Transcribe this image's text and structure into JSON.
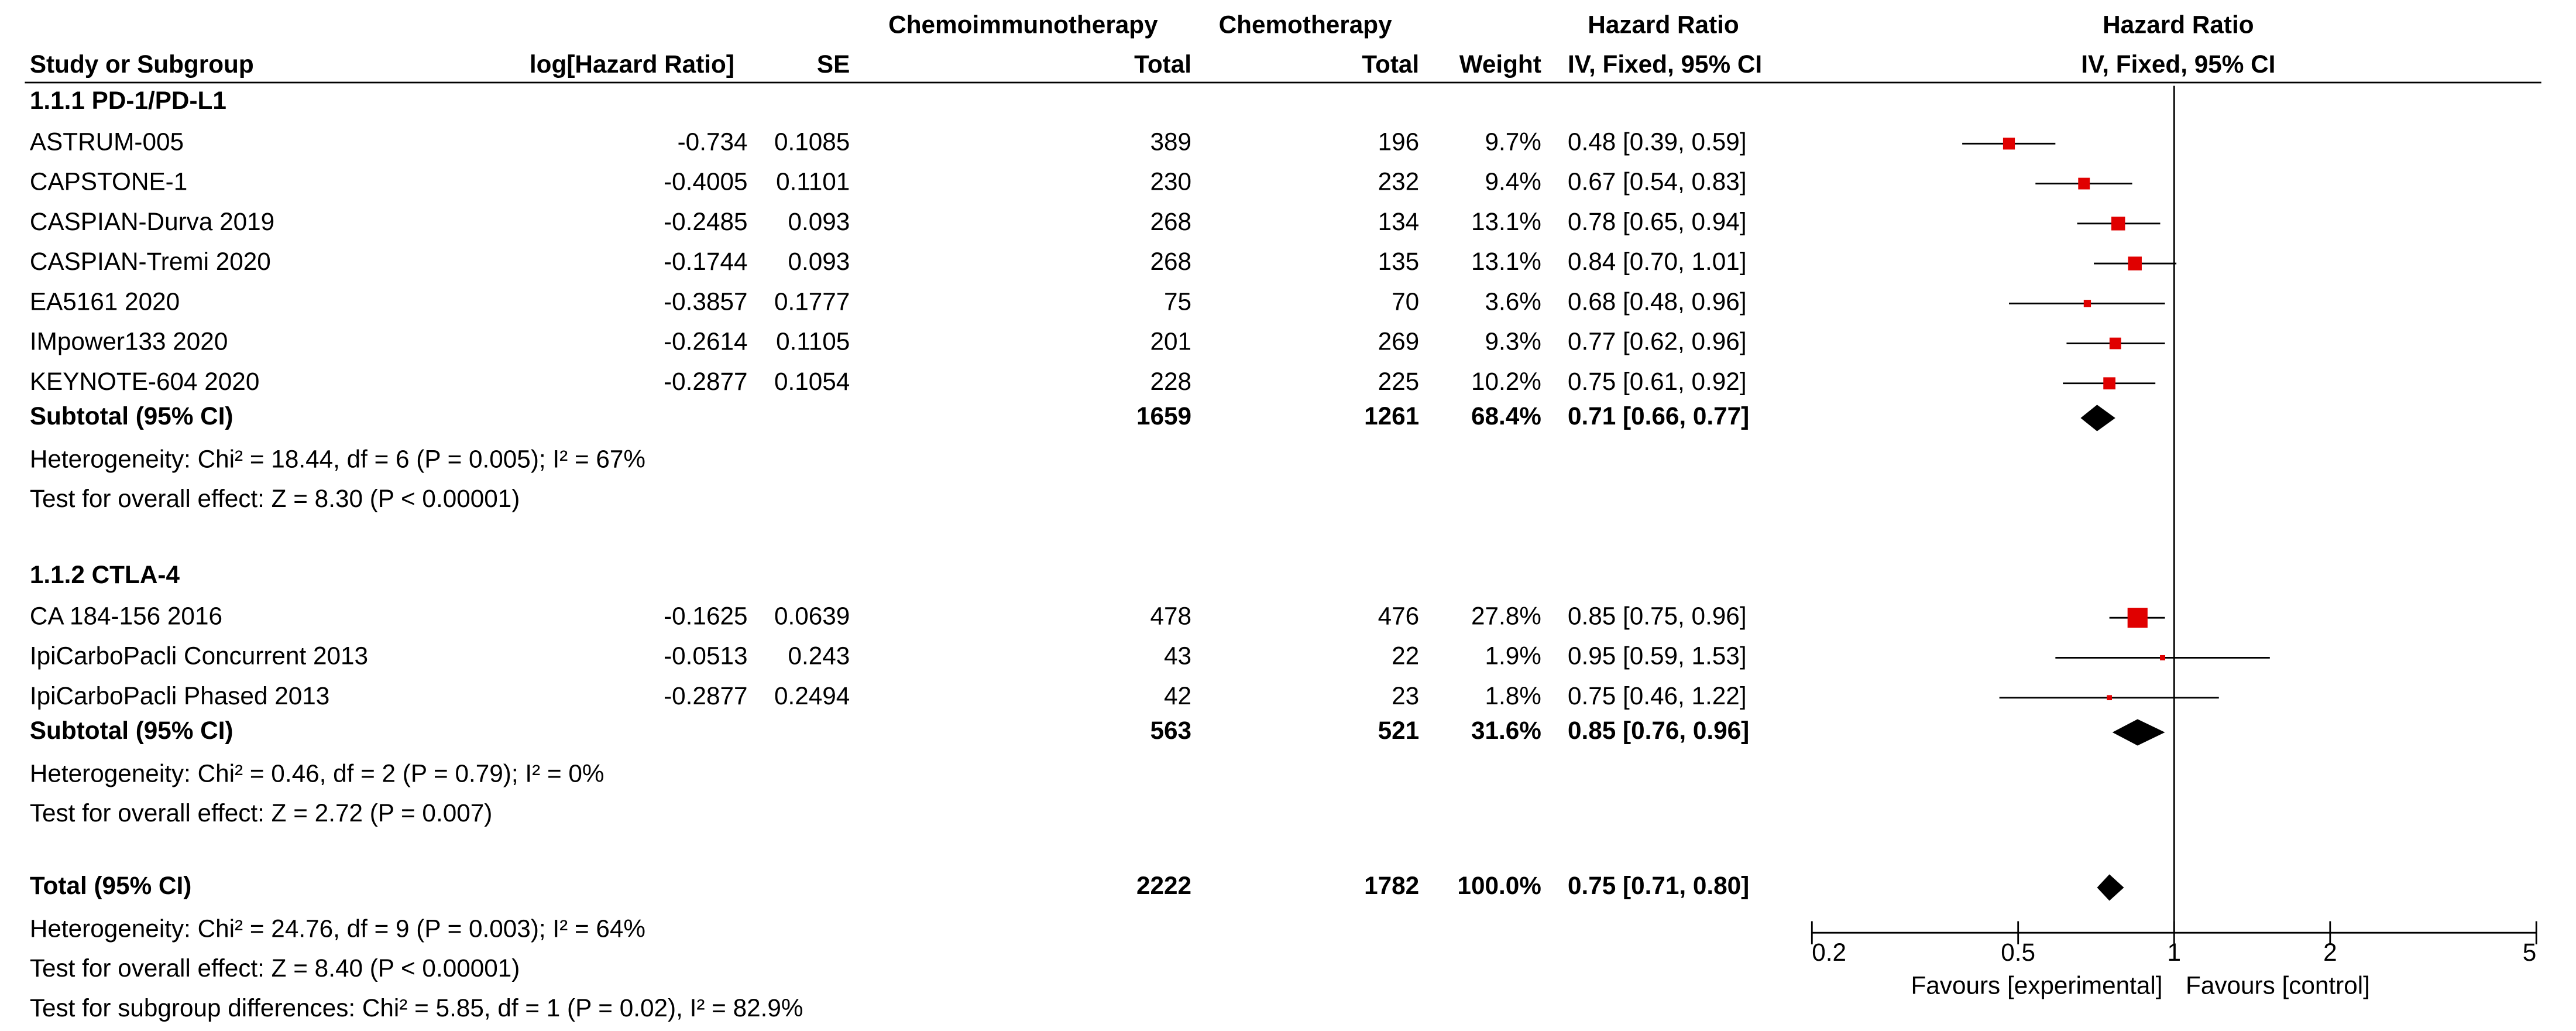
{
  "chart_data": {
    "type": "forest",
    "header_top": [
      "Chemoimmunotherapy",
      "Chemotherapy",
      "Hazard Ratio",
      "Hazard Ratio"
    ],
    "columns": [
      "Study or Subgroup",
      "log[Hazard Ratio]",
      "SE",
      "Total",
      "Total",
      "Weight",
      "IV, Fixed, 95% CI",
      "IV, Fixed, 95% CI"
    ],
    "subgroups": [
      {
        "title": "1.1.1 PD-1/PD-L1",
        "studies": [
          {
            "name": "ASTRUM-005",
            "log_hr": -0.734,
            "se": 0.1085,
            "exp_total": 389,
            "ctrl_total": 196,
            "weight": 9.7,
            "weight_label": "9.7%",
            "hr": 0.48,
            "ci_low": 0.39,
            "ci_high": 0.59,
            "hr_label": "0.48 [0.39, 0.59]"
          },
          {
            "name": "CAPSTONE-1",
            "log_hr": -0.4005,
            "se": 0.1101,
            "exp_total": 230,
            "ctrl_total": 232,
            "weight": 9.4,
            "weight_label": "9.4%",
            "hr": 0.67,
            "ci_low": 0.54,
            "ci_high": 0.83,
            "hr_label": "0.67 [0.54, 0.83]"
          },
          {
            "name": "CASPIAN-Durva 2019",
            "log_hr": -0.2485,
            "se": 0.093,
            "exp_total": 268,
            "ctrl_total": 134,
            "weight": 13.1,
            "weight_label": "13.1%",
            "hr": 0.78,
            "ci_low": 0.65,
            "ci_high": 0.94,
            "hr_label": "0.78 [0.65, 0.94]"
          },
          {
            "name": "CASPIAN-Tremi 2020",
            "log_hr": -0.1744,
            "se": 0.093,
            "exp_total": 268,
            "ctrl_total": 135,
            "weight": 13.1,
            "weight_label": "13.1%",
            "hr": 0.84,
            "ci_low": 0.7,
            "ci_high": 1.01,
            "hr_label": "0.84 [0.70, 1.01]"
          },
          {
            "name": "EA5161 2020",
            "log_hr": -0.3857,
            "se": 0.1777,
            "exp_total": 75,
            "ctrl_total": 70,
            "weight": 3.6,
            "weight_label": "3.6%",
            "hr": 0.68,
            "ci_low": 0.48,
            "ci_high": 0.96,
            "hr_label": "0.68 [0.48, 0.96]"
          },
          {
            "name": "IMpower133 2020",
            "log_hr": -0.2614,
            "se": 0.1105,
            "exp_total": 201,
            "ctrl_total": 269,
            "weight": 9.3,
            "weight_label": "9.3%",
            "hr": 0.77,
            "ci_low": 0.62,
            "ci_high": 0.96,
            "hr_label": "0.77 [0.62, 0.96]"
          },
          {
            "name": "KEYNOTE-604 2020",
            "log_hr": -0.2877,
            "se": 0.1054,
            "exp_total": 228,
            "ctrl_total": 225,
            "weight": 10.2,
            "weight_label": "10.2%",
            "hr": 0.75,
            "ci_low": 0.61,
            "ci_high": 0.92,
            "hr_label": "0.75 [0.61, 0.92]"
          }
        ],
        "subtotal": {
          "name": "Subtotal (95% CI)",
          "exp_total": 1659,
          "ctrl_total": 1261,
          "weight": 68.4,
          "weight_label": "68.4%",
          "hr": 0.71,
          "ci_low": 0.66,
          "ci_high": 0.77,
          "hr_label": "0.71 [0.66, 0.77]"
        },
        "heterogeneity": "Heterogeneity: Chi² = 18.44, df = 6 (P = 0.005); I² = 67%",
        "overall_effect": "Test for overall effect: Z = 8.30 (P < 0.00001)"
      },
      {
        "title": "1.1.2 CTLA-4",
        "studies": [
          {
            "name": "CA 184-156 2016",
            "log_hr": -0.1625,
            "se": 0.0639,
            "exp_total": 478,
            "ctrl_total": 476,
            "weight": 27.8,
            "weight_label": "27.8%",
            "hr": 0.85,
            "ci_low": 0.75,
            "ci_high": 0.96,
            "hr_label": "0.85 [0.75, 0.96]"
          },
          {
            "name": "IpiCarboPacli Concurrent 2013",
            "log_hr": -0.0513,
            "se": 0.243,
            "exp_total": 43,
            "ctrl_total": 22,
            "weight": 1.9,
            "weight_label": "1.9%",
            "hr": 0.95,
            "ci_low": 0.59,
            "ci_high": 1.53,
            "hr_label": "0.95 [0.59, 1.53]"
          },
          {
            "name": "IpiCarboPacli Phased 2013",
            "log_hr": -0.2877,
            "se": 0.2494,
            "exp_total": 42,
            "ctrl_total": 23,
            "weight": 1.8,
            "weight_label": "1.8%",
            "hr": 0.75,
            "ci_low": 0.46,
            "ci_high": 1.22,
            "hr_label": "0.75 [0.46, 1.22]"
          }
        ],
        "subtotal": {
          "name": "Subtotal (95% CI)",
          "exp_total": 563,
          "ctrl_total": 521,
          "weight": 31.6,
          "weight_label": "31.6%",
          "hr": 0.85,
          "ci_low": 0.76,
          "ci_high": 0.96,
          "hr_label": "0.85 [0.76, 0.96]"
        },
        "heterogeneity": "Heterogeneity: Chi² = 0.46, df = 2 (P = 0.79); I² = 0%",
        "overall_effect": "Test for overall effect: Z = 2.72 (P = 0.007)"
      }
    ],
    "total": {
      "name": "Total (95% CI)",
      "exp_total": 2222,
      "ctrl_total": 1782,
      "weight": 100.0,
      "weight_label": "100.0%",
      "hr": 0.75,
      "ci_low": 0.71,
      "ci_high": 0.8,
      "hr_label": "0.75 [0.71, 0.80]",
      "heterogeneity": "Heterogeneity: Chi² = 24.76, df = 9 (P = 0.003); I² = 64%",
      "overall_effect": "Test for overall effect: Z = 8.40 (P < 0.00001)",
      "subgroup_differences": "Test for subgroup differences: Chi² = 5.85, df = 1 (P = 0.02), I² = 82.9%"
    },
    "xscale": "log",
    "xlim": [
      0.2,
      5
    ],
    "xticks": [
      0.2,
      0.5,
      1,
      2,
      5
    ],
    "favours_left": "Favours [experimental]",
    "favours_right": "Favours [control]",
    "color": "#e00000"
  }
}
